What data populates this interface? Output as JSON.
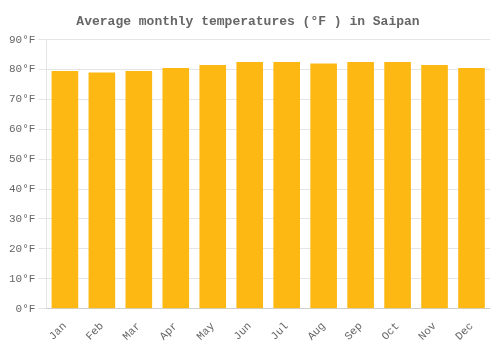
{
  "chart_data": {
    "type": "bar",
    "title": "Average monthly temperatures (°F ) in Saipan",
    "categories": [
      "Jan",
      "Feb",
      "Mar",
      "Apr",
      "May",
      "Jun",
      "Jul",
      "Aug",
      "Sep",
      "Oct",
      "Nov",
      "Dec"
    ],
    "values": [
      79.5,
      79.0,
      79.5,
      80.5,
      81.5,
      82.5,
      82.5,
      82.0,
      82.5,
      82.5,
      81.5,
      80.5
    ],
    "color": "#FDB813",
    "ylim": [
      0,
      90
    ],
    "yticks": [
      {
        "value": 0,
        "label": "0°F"
      },
      {
        "value": 10,
        "label": "10°F"
      },
      {
        "value": 20,
        "label": "20°F"
      },
      {
        "value": 30,
        "label": "30°F"
      },
      {
        "value": 40,
        "label": "40°F"
      },
      {
        "value": 50,
        "label": "50°F"
      },
      {
        "value": 60,
        "label": "60°F"
      },
      {
        "value": 70,
        "label": "70°F"
      },
      {
        "value": 80,
        "label": "80°F"
      },
      {
        "value": 90,
        "label": "90°F"
      }
    ],
    "grid": true
  }
}
